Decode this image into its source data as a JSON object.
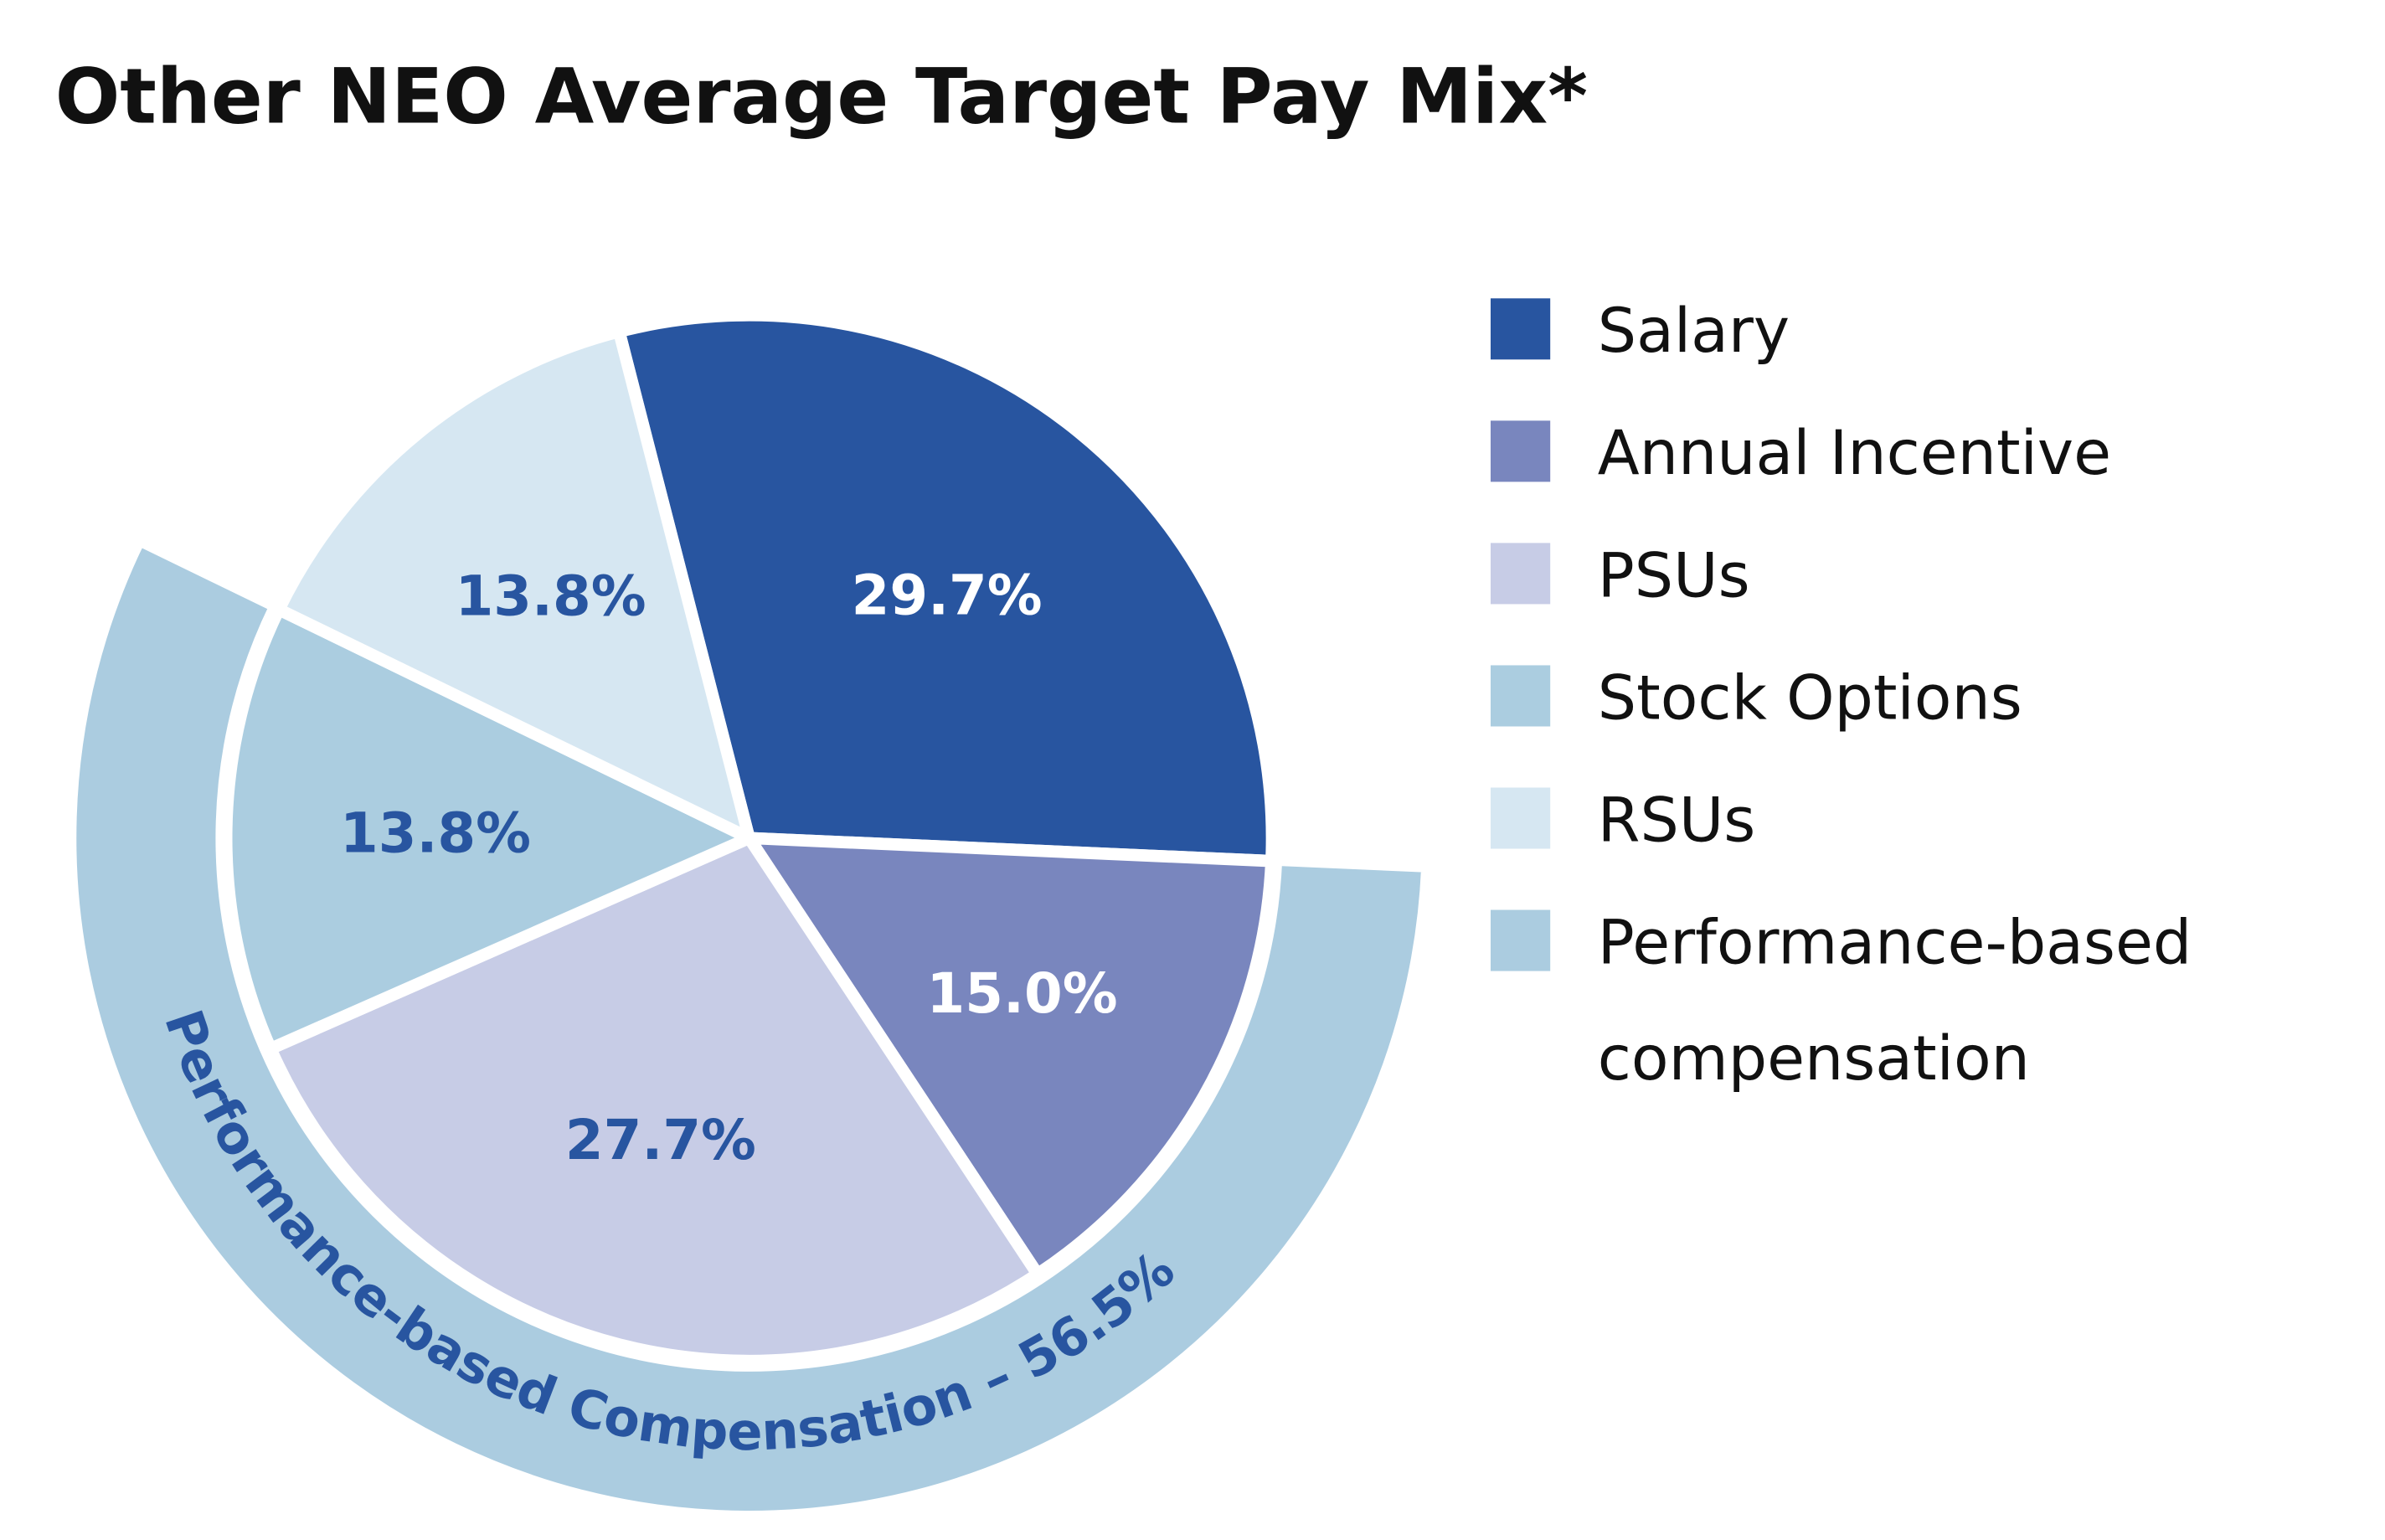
{
  "chart_data": {
    "type": "pie",
    "title": "Other NEO Average Target Pay Mix*",
    "slices": [
      {
        "label": "Salary",
        "value": 29.7,
        "display": "29.7%",
        "color": "#2855a0",
        "label_color": "#ffffff"
      },
      {
        "label": "Annual Incentive",
        "value": 15.0,
        "display": "15.0%",
        "color": "#7986be",
        "label_color": "#ffffff"
      },
      {
        "label": "PSUs",
        "value": 27.7,
        "display": "27.7%",
        "color": "#c7cce6",
        "label_color": "#2855a0"
      },
      {
        "label": "Stock Options",
        "value": 13.8,
        "display": "13.8%",
        "color": "#abcde0",
        "label_color": "#2855a0"
      },
      {
        "label": "RSUs",
        "value": 13.8,
        "display": "13.8%",
        "color": "#d6e7f2",
        "label_color": "#2855a0"
      }
    ],
    "group_ring": {
      "legend_label": "Performance-based compensation",
      "text": "Performance-based Compensation – 56.5%",
      "value": 56.5,
      "members": [
        "Annual Incentive",
        "PSUs",
        "Stock Options"
      ],
      "color": "#abcce0",
      "text_color": "#2855a0"
    },
    "legend": {
      "placement": "right",
      "entries": [
        {
          "label": "Salary",
          "color": "#2855a0"
        },
        {
          "label": "Annual Incentive",
          "color": "#7986be"
        },
        {
          "label": "PSUs",
          "color": "#c7cce6"
        },
        {
          "label": "Stock Options",
          "color": "#abcde0"
        },
        {
          "label": "RSUs",
          "color": "#d6e7f2"
        },
        {
          "label": "Performance-based compensation",
          "lines": [
            "Performance-based",
            "compensation"
          ],
          "color": "#abcce0"
        }
      ]
    }
  }
}
